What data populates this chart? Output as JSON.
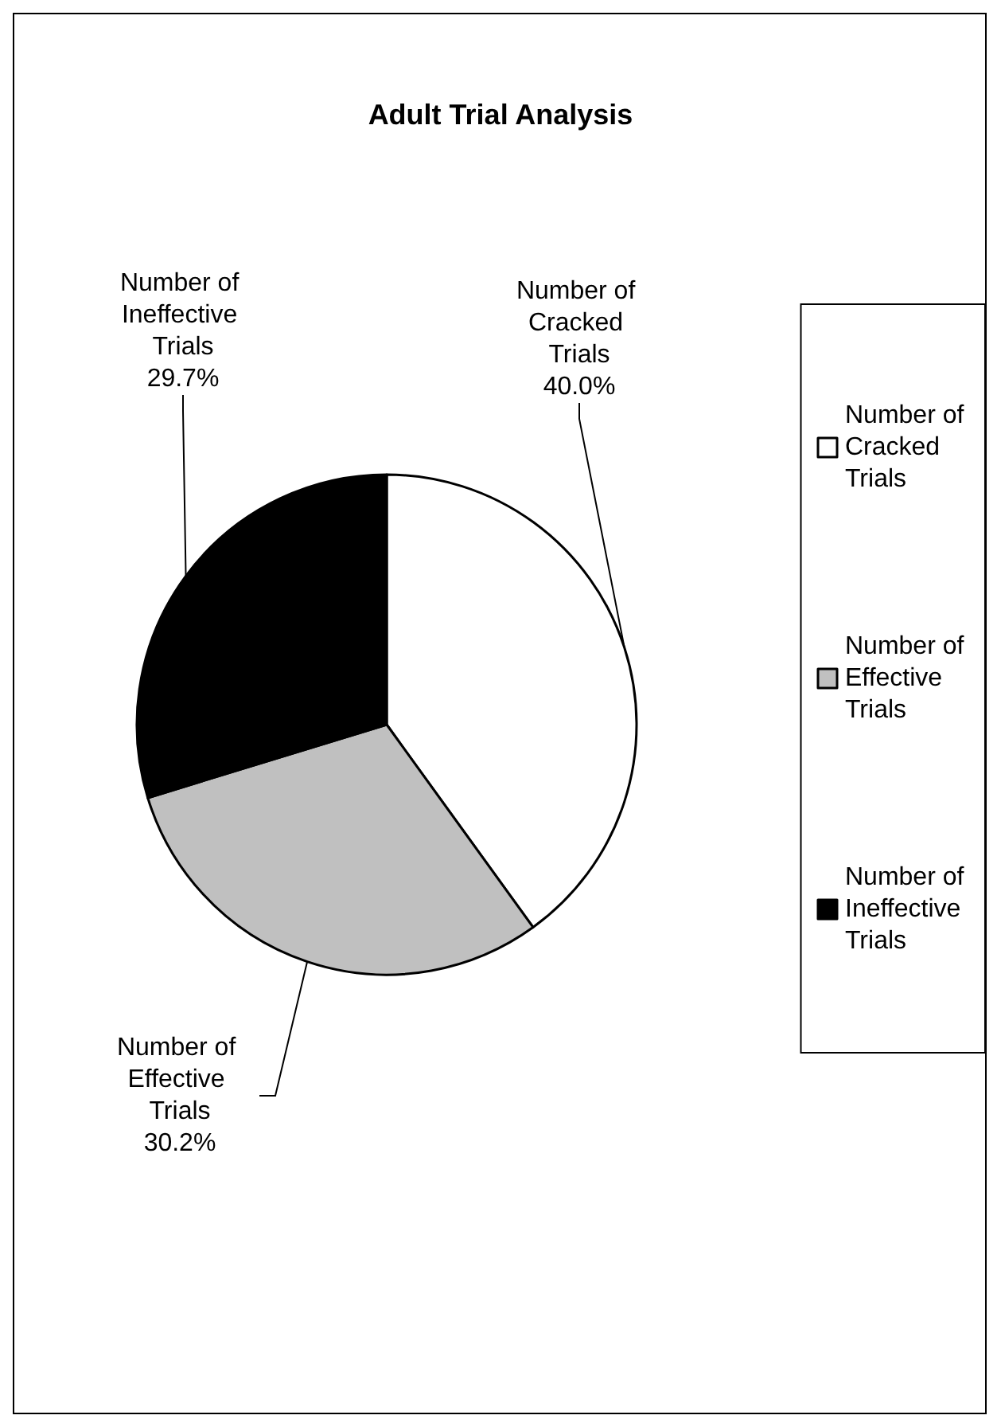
{
  "chart_data": {
    "type": "pie",
    "title": "Adult Trial Analysis",
    "categories": [
      "Number of Cracked Trials",
      "Number of Effective Trials",
      "Number of Ineffective Trials"
    ],
    "values": [
      40.0,
      30.2,
      29.7
    ],
    "value_labels": [
      "40.0%",
      "30.2%",
      "29.7%"
    ],
    "colors": [
      "#ffffff",
      "#c0c0c0",
      "#000000"
    ],
    "legend": "right"
  }
}
